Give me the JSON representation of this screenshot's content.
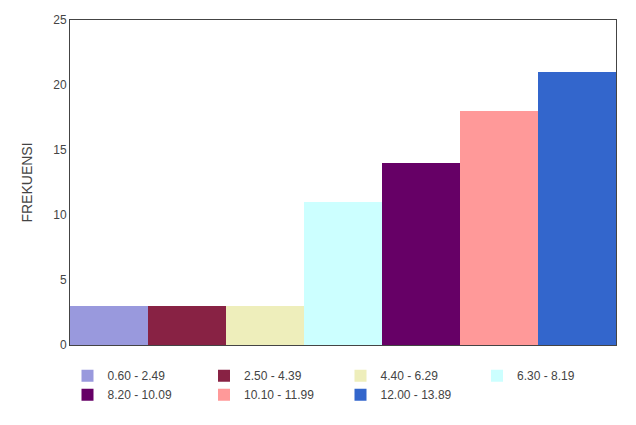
{
  "chart_data": {
    "type": "bar",
    "categories": [
      "0.60 - 2.49",
      "2.50 - 4.39",
      "4.40 - 6.29",
      "6.30 - 8.19",
      "8.20 - 10.09",
      "10.10 - 11.99",
      "12.00 - 13.89"
    ],
    "values": [
      3,
      3,
      3,
      11,
      14,
      18,
      21
    ],
    "colors": [
      "#9999dd",
      "#882244",
      "#eeeebb",
      "#ccffff",
      "#660066",
      "#ff9999",
      "#3366cc"
    ],
    "ylabel": "FREKUENSI",
    "ylim": [
      0,
      25
    ],
    "yticks": [
      0,
      5,
      10,
      15,
      20,
      25
    ],
    "grid": false,
    "legend": "bottom",
    "tick_labels": "y"
  }
}
